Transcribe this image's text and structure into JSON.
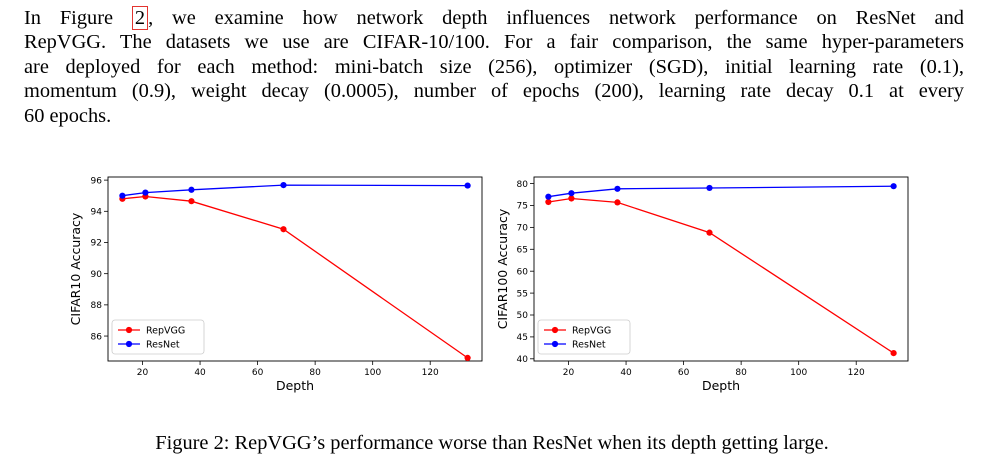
{
  "paragraph": {
    "lines": [
      {
        "before": "In Figure ",
        "ref": "2",
        "after": ", we examine how network depth influences network performance on ResNet and"
      },
      {
        "text": "RepVGG. The datasets we use are CIFAR-10/100. For a fair comparison, the same hyper-parameters"
      },
      {
        "text": "are deployed for each method: mini-batch size (256), optimizer (SGD), initial learning rate (0.1),"
      },
      {
        "text": "momentum (0.9), weight decay (0.0005), number of epochs (200), learning rate decay 0.1 at every"
      },
      {
        "text": "60 epochs."
      }
    ]
  },
  "caption": "Figure 2: RepVGG’s performance worse than ResNet when its depth getting large.",
  "chart_data": [
    {
      "type": "line",
      "title": "",
      "xlabel": "Depth",
      "ylabel": "CIFAR10 Accuracy",
      "x": [
        13,
        21,
        37,
        69,
        133
      ],
      "xlim": [
        8,
        138
      ],
      "ylim": [
        84.4,
        96.2
      ],
      "xticks": [
        20,
        40,
        60,
        80,
        100,
        120
      ],
      "yticks": [
        86,
        88,
        90,
        92,
        94,
        96
      ],
      "series": [
        {
          "name": "RepVGG",
          "color": "#ff0000",
          "values": [
            94.8,
            94.95,
            94.65,
            92.85,
            84.6
          ]
        },
        {
          "name": "ResNet",
          "color": "#0000ff",
          "values": [
            95.0,
            95.2,
            95.38,
            95.68,
            95.65
          ]
        }
      ],
      "legend": "lower-left"
    },
    {
      "type": "line",
      "title": "",
      "xlabel": "Depth",
      "ylabel": "CIFAR100 Accuracy",
      "x": [
        13,
        21,
        37,
        69,
        133
      ],
      "xlim": [
        8,
        138
      ],
      "ylim": [
        39.5,
        81.5
      ],
      "xticks": [
        20,
        40,
        60,
        80,
        100,
        120
      ],
      "yticks": [
        40,
        45,
        50,
        55,
        60,
        65,
        70,
        75,
        80
      ],
      "series": [
        {
          "name": "RepVGG",
          "color": "#ff0000",
          "values": [
            75.8,
            76.6,
            75.7,
            68.8,
            41.3
          ]
        },
        {
          "name": "ResNet",
          "color": "#0000ff",
          "values": [
            77.0,
            77.8,
            78.8,
            79.0,
            79.4
          ]
        }
      ],
      "legend": "lower-left"
    }
  ]
}
